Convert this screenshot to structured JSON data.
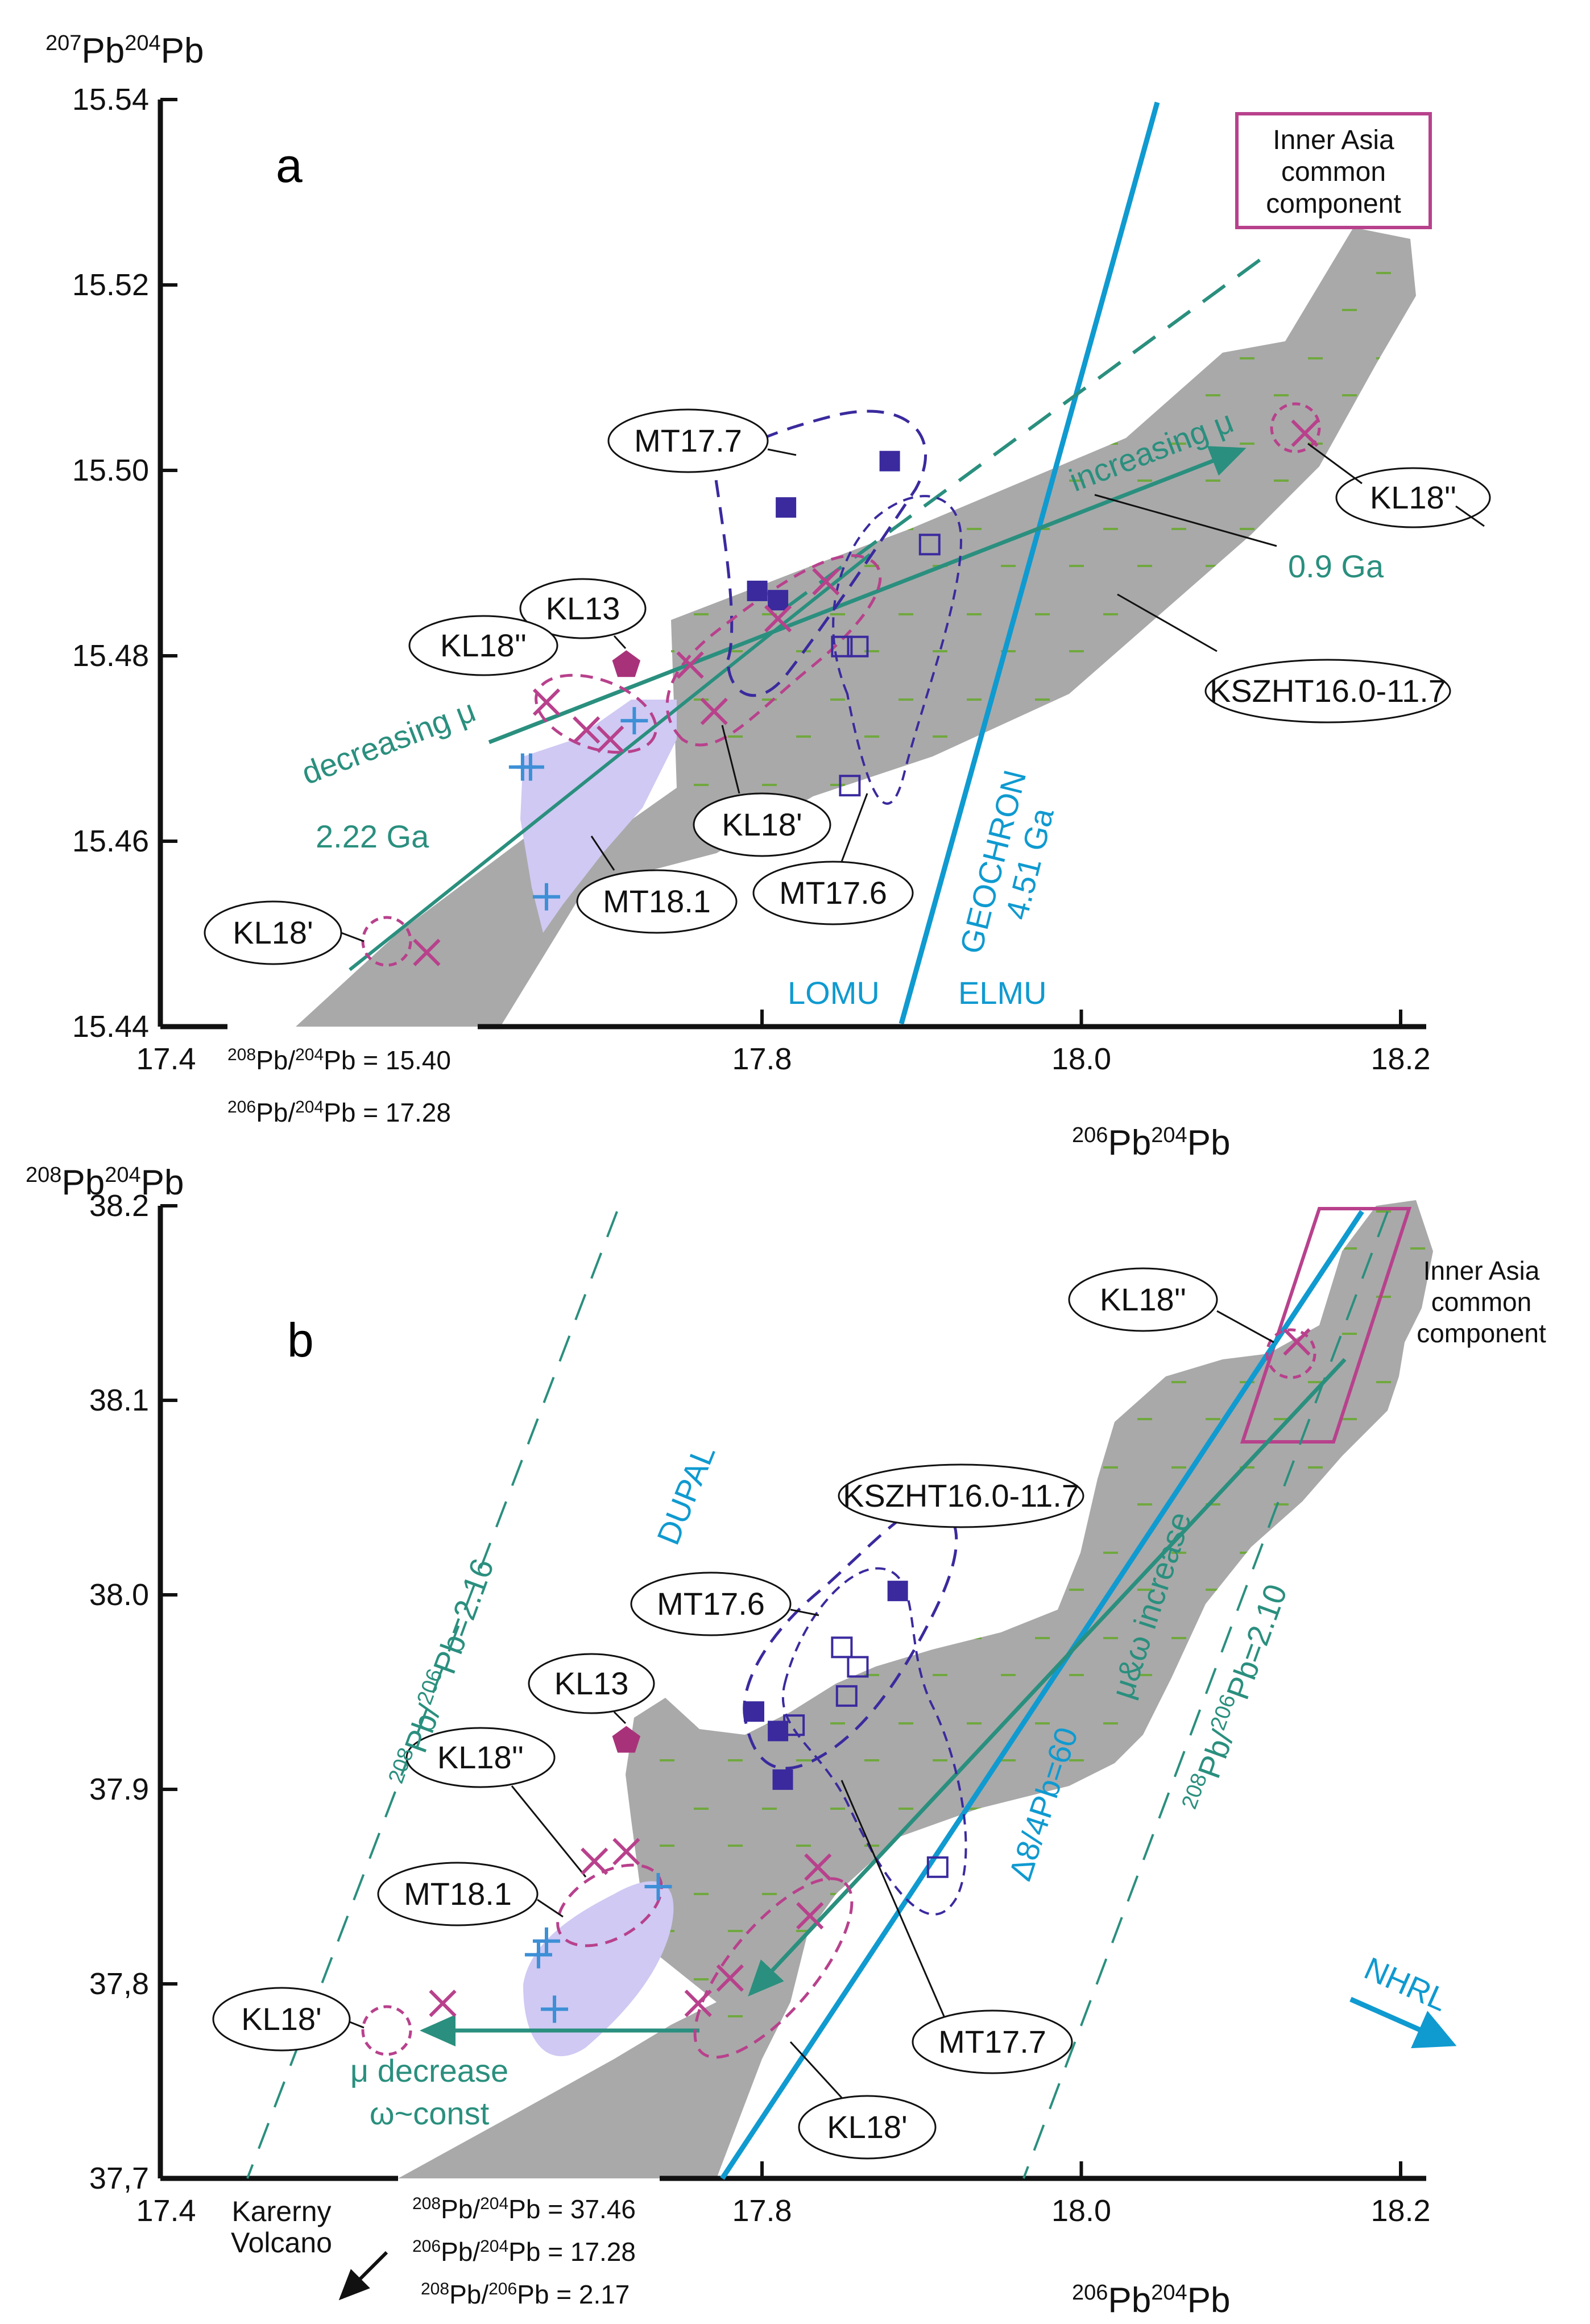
{
  "figure": {
    "panels": [
      "a",
      "b"
    ]
  },
  "colors": {
    "teal": "#2a8f7e",
    "blue": "#0f9ad0",
    "magenta": "#b8418c",
    "navy": "#3a2a9e",
    "grey_field": "#a9a9a9",
    "lilac_field": "#cfc9f3",
    "green_dash": "#6aa832"
  },
  "chart_data": [
    {
      "panel": "a",
      "type": "scatter",
      "xlabel": {
        "base": "Pb",
        "sup1": "206",
        "sup2": "204"
      },
      "ylabel": {
        "base": "Pb",
        "sup1": "207",
        "sup2": "204"
      },
      "xlim": [
        17.4,
        18.2
      ],
      "ylim": [
        15.44,
        15.54
      ],
      "xticks": [
        "17.4",
        "17.8",
        "18.0",
        "18.2"
      ],
      "yticks": [
        "15.44",
        "15.46",
        "15.48",
        "15.50",
        "15.52",
        "15.54"
      ],
      "axis_break_notes": [
        "Pb/Pb = 15.40",
        "Pb/Pb = 17.28"
      ],
      "axis_break_sup": [
        [
          "208",
          "204"
        ],
        [
          "206",
          "204"
        ]
      ],
      "series": [
        {
          "name": "MT17.7 (filled squares)",
          "marker": "filled-square",
          "points": [
            [
              17.88,
              15.501
            ],
            [
              17.815,
              15.496
            ],
            [
              17.797,
              15.487
            ],
            [
              17.81,
              15.486
            ]
          ]
        },
        {
          "name": "MT17.6 (open squares)",
          "marker": "open-square",
          "points": [
            [
              17.905,
              15.492
            ],
            [
              17.85,
              15.481
            ],
            [
              17.86,
              15.481
            ],
            [
              17.855,
              15.466
            ]
          ]
        },
        {
          "name": "KL samples (crosses)",
          "marker": "x",
          "points": [
            [
              18.14,
              15.504
            ],
            [
              17.84,
              15.488
            ],
            [
              17.81,
              15.484
            ],
            [
              17.755,
              15.479
            ],
            [
              17.77,
              15.474
            ],
            [
              17.665,
              15.475
            ],
            [
              17.69,
              15.472
            ],
            [
              17.705,
              15.471
            ],
            [
              17.59,
              15.448
            ]
          ]
        },
        {
          "name": "MT18.1 (plus)",
          "marker": "plus",
          "points": [
            [
              17.72,
              15.473
            ],
            [
              17.65,
              15.468
            ],
            [
              17.655,
              15.468
            ],
            [
              17.665,
              15.454
            ]
          ]
        },
        {
          "name": "KL13 (pentagon)",
          "marker": "pentagon",
          "points": [
            [
              17.715,
              15.479
            ]
          ]
        }
      ],
      "labels": {
        "panel_letter": "a",
        "mt177": "MT17.7",
        "kl13": "KL13",
        "kl18pp_left": "KL18''",
        "kl18pp_right": "KL18''",
        "kl18p_mid": "KL18'",
        "kl18p_left": "KL18'",
        "mt176": "MT17.6",
        "mt181": "MT18.1",
        "kszht": "KSZHT16.0-11.7",
        "inner_asia": [
          "Inner Asia",
          "common",
          "component"
        ],
        "increasing_mu": "increasing μ",
        "decreasing_mu": "decreasing μ",
        "age_09": "0.9 Ga",
        "age_222": "2.22 Ga",
        "geochron": "GEOCHRON",
        "geochron_age": "4.51 Ga",
        "lomu": "LOMU",
        "elmu": "ELMU"
      }
    },
    {
      "panel": "b",
      "type": "scatter",
      "xlabel": {
        "base": "Pb",
        "sup1": "206",
        "sup2": "204"
      },
      "ylabel": {
        "base": "Pb",
        "sup1": "208",
        "sup2": "204"
      },
      "xlim": [
        17.4,
        18.2
      ],
      "ylim": [
        37.7,
        38.2
      ],
      "xticks": [
        "17.4",
        "17.8",
        "18.0",
        "18.2"
      ],
      "yticks": [
        "37,7",
        "37,8",
        "37.9",
        "38.0",
        "38.1",
        "38.2"
      ],
      "axis_break_notes": [
        "Pb/Pb = 37.46",
        "Pb/Pb = 17.28",
        "Pb/Pb = 2.17"
      ],
      "axis_break_sup": [
        [
          "208",
          "204"
        ],
        [
          "206",
          "204"
        ],
        [
          "208",
          "206"
        ]
      ],
      "series": [
        {
          "name": "MT17.7 (filled squares)",
          "marker": "filled-square",
          "points": [
            [
              17.885,
              38.002
            ],
            [
              17.795,
              37.94
            ],
            [
              17.81,
              37.93
            ],
            [
              17.813,
              37.905
            ]
          ]
        },
        {
          "name": "MT17.6 (open squares)",
          "marker": "open-square",
          "points": [
            [
              17.85,
              37.973
            ],
            [
              17.86,
              37.963
            ],
            [
              17.853,
              37.948
            ],
            [
              17.82,
              37.933
            ],
            [
              17.91,
              37.86
            ]
          ]
        },
        {
          "name": "KL samples (crosses)",
          "marker": "x",
          "points": [
            [
              18.135,
              38.13
            ],
            [
              17.835,
              37.86
            ],
            [
              17.83,
              37.835
            ],
            [
              17.78,
              37.803
            ],
            [
              17.76,
              37.79
            ],
            [
              17.695,
              37.863
            ],
            [
              17.715,
              37.868
            ],
            [
              17.6,
              37.79
            ]
          ]
        },
        {
          "name": "MT18.1 (plus)",
          "marker": "plus",
          "points": [
            [
              17.735,
              37.85
            ],
            [
              17.665,
              37.822
            ],
            [
              17.66,
              37.815
            ],
            [
              17.67,
              37.787
            ]
          ]
        },
        {
          "name": "KL13 (pentagon)",
          "marker": "pentagon",
          "points": [
            [
              17.715,
              37.925
            ]
          ]
        }
      ],
      "labels": {
        "panel_letter": "b",
        "kl18pp_right": "KL18''",
        "kszht": "KSZHT16.0-11.7",
        "mt176": "MT17.6",
        "kl13": "KL13",
        "kl18pp_left": "KL18''",
        "mt181": "MT18.1",
        "kl18p_left": "KL18'",
        "mt177": "MT17.7",
        "kl18p_mid": "KL18'",
        "inner_asia": [
          "Inner Asia",
          "common",
          "component"
        ],
        "dupal": "DUPAL",
        "ratio_left": "Pb/Pb=2.16",
        "ratio_left_sup": [
          "208",
          "206"
        ],
        "ratio_right": "Pb/Pb=2.10",
        "ratio_right_sup": [
          "208",
          "206"
        ],
        "delta": "Δ8/4Pb=60",
        "mu_omega": "μ&ω increase",
        "mu_decrease": "μ decrease",
        "omega_const": "ω~const",
        "nhrl": "NHRL",
        "karerny": [
          "Karerny",
          "Volcano"
        ]
      }
    }
  ]
}
